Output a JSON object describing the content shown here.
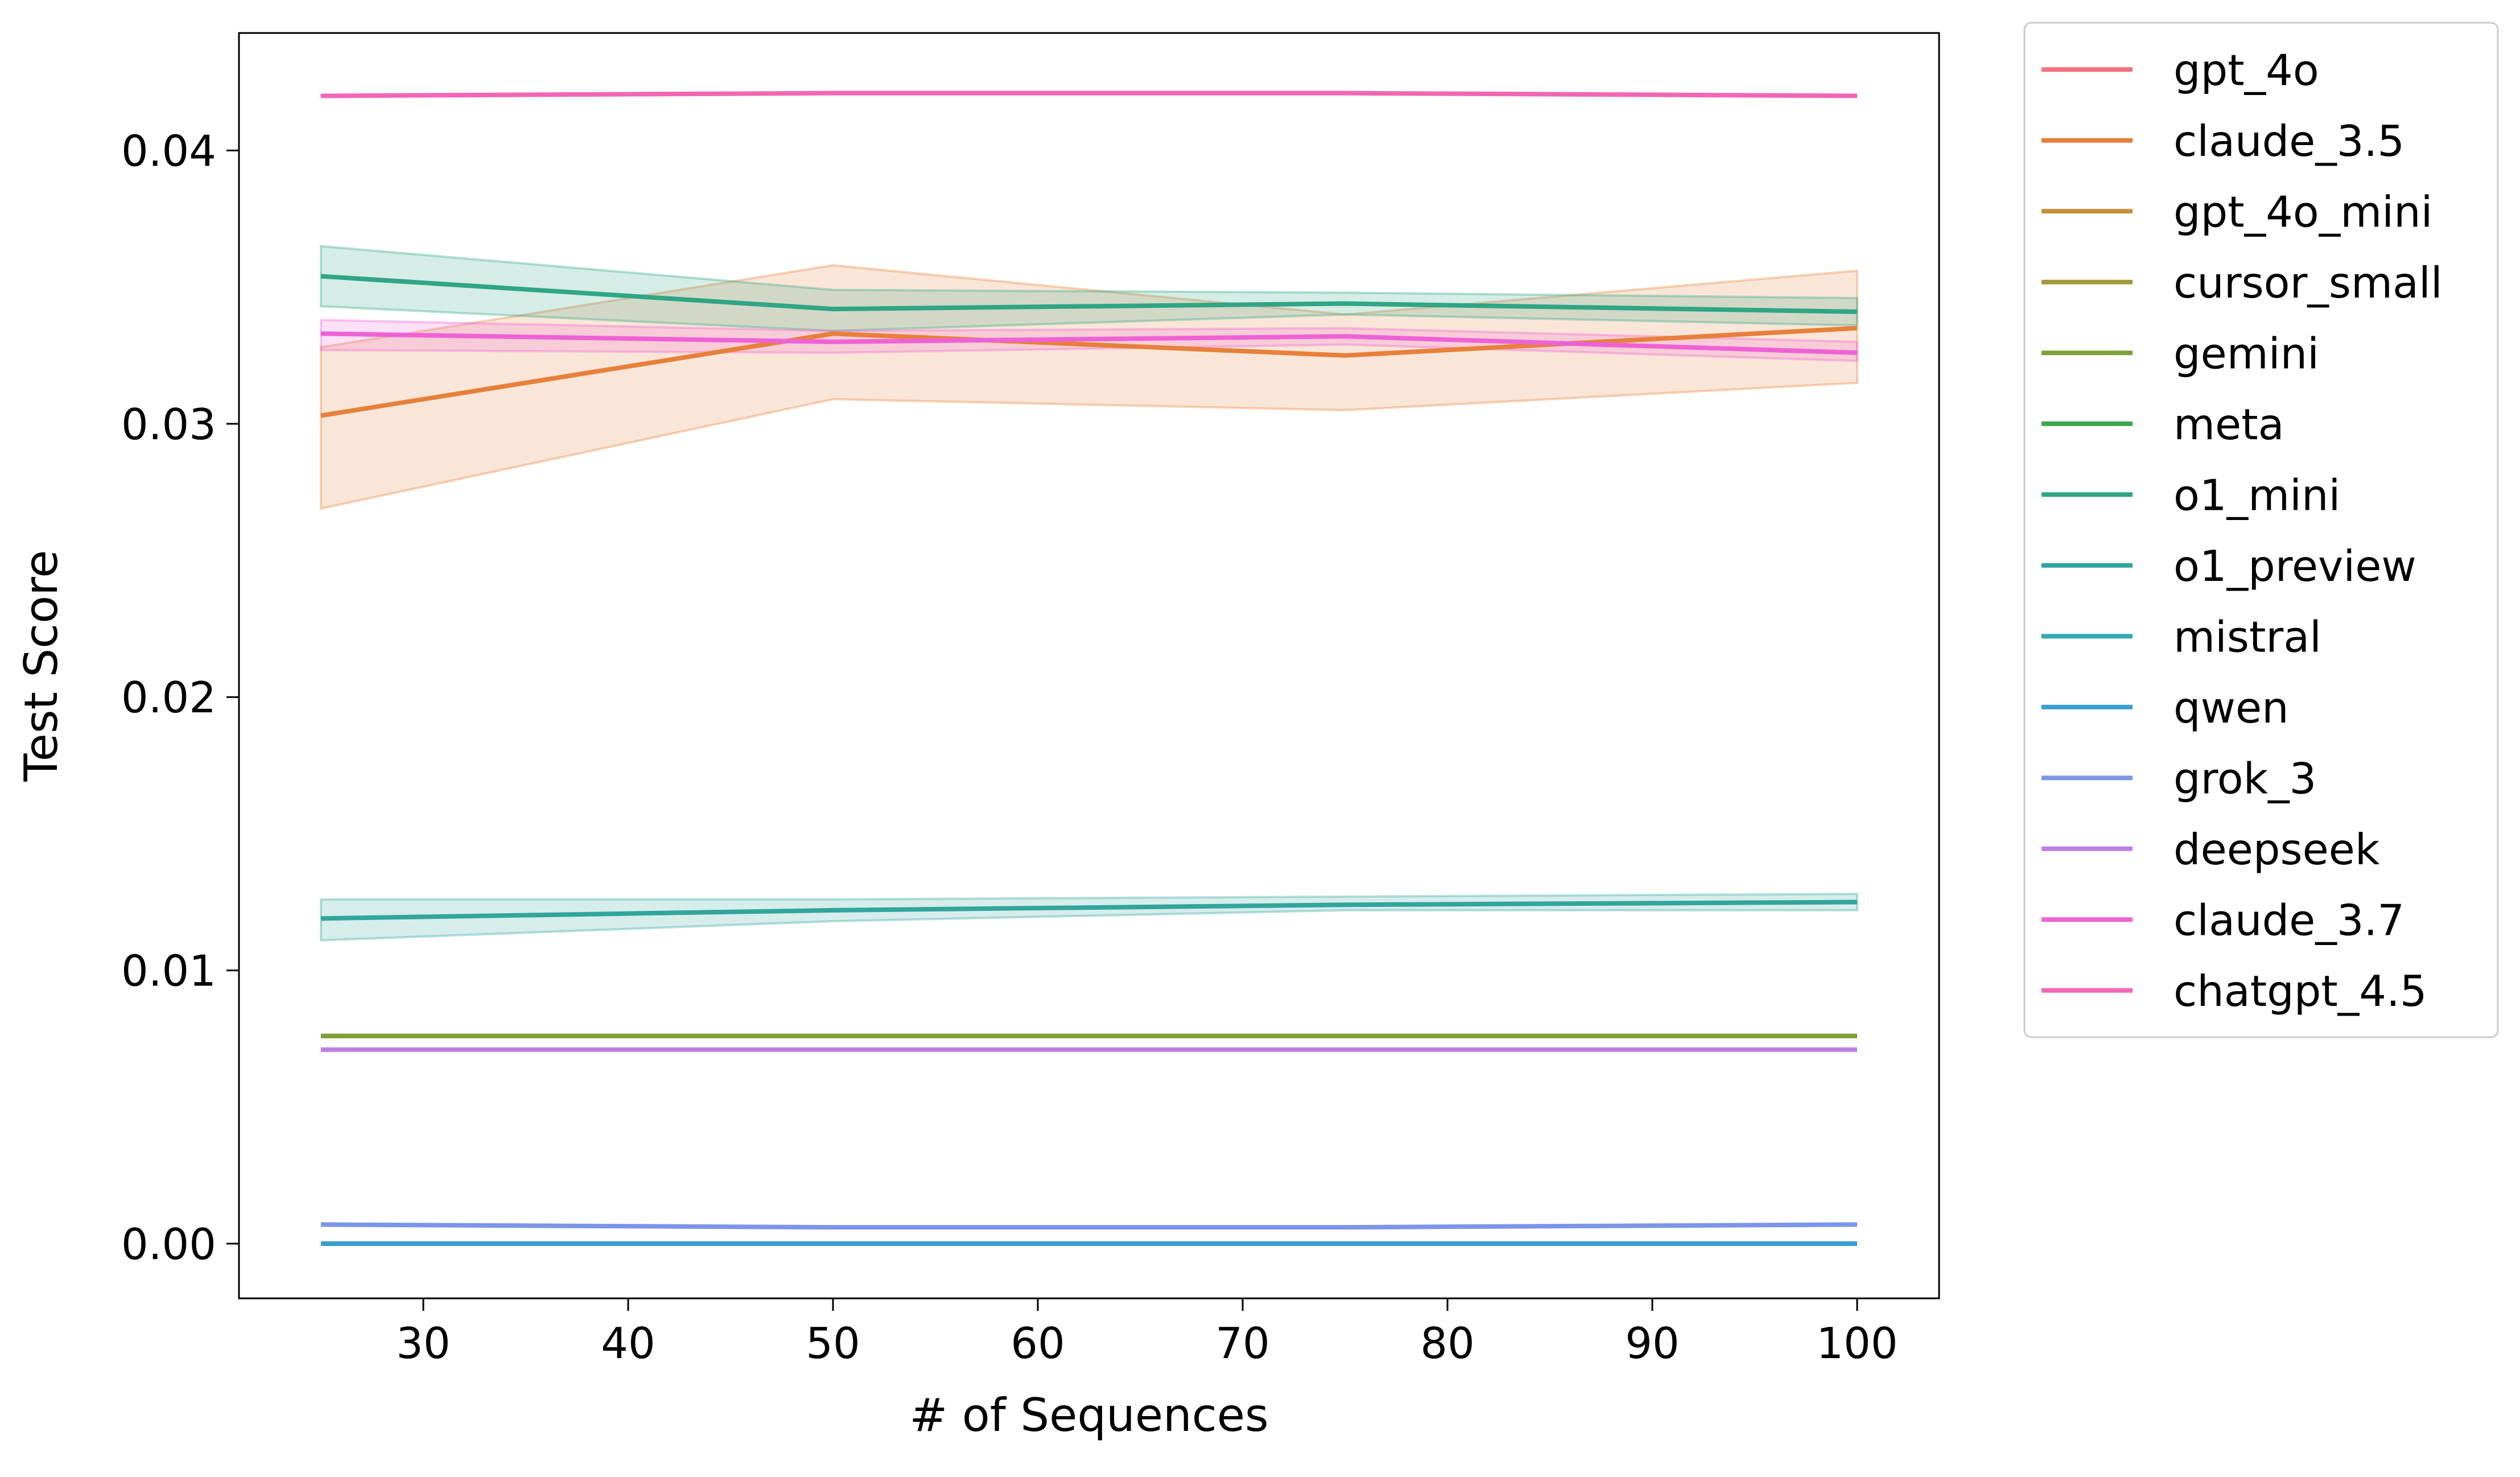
{
  "chart_data": {
    "type": "line",
    "title": "",
    "xlabel": "# of Sequences",
    "ylabel": "Test Score",
    "x": [
      25,
      50,
      75,
      100
    ],
    "xlim": [
      21,
      104
    ],
    "ylim": [
      -0.002,
      0.0443
    ],
    "xticks": [
      "30",
      "40",
      "50",
      "60",
      "70",
      "80",
      "90",
      "100"
    ],
    "yticks": [
      "0.00",
      "0.01",
      "0.02",
      "0.03",
      "0.04"
    ],
    "grid": false,
    "legend_placement": "outside-right-top",
    "series": [
      {
        "name": "gpt_4o",
        "color": "#f0717f",
        "values": [
          0.0,
          0.0,
          0.0,
          0.0
        ]
      },
      {
        "name": "claude_3.5",
        "color": "#e7803a",
        "values": [
          0.0303,
          0.0333,
          0.0325,
          0.0335
        ],
        "ci_low": [
          0.0269,
          0.0309,
          0.0305,
          0.0315
        ],
        "ci_high": [
          0.0328,
          0.0358,
          0.034,
          0.0356
        ]
      },
      {
        "name": "gpt_4o_mini",
        "color": "#c5903a",
        "values": [
          0.0076,
          0.0076,
          0.0076,
          0.0076
        ]
      },
      {
        "name": "cursor_small",
        "color": "#a3993a",
        "values": [
          0.0076,
          0.0076,
          0.0076,
          0.0076
        ]
      },
      {
        "name": "gemini",
        "color": "#7ea13a",
        "values": [
          0.0076,
          0.0076,
          0.0076,
          0.0076
        ]
      },
      {
        "name": "meta",
        "color": "#39a64c",
        "values": [
          0.0,
          0.0,
          0.0,
          0.0
        ]
      },
      {
        "name": "o1_mini",
        "color": "#2fa583",
        "values": [
          0.0354,
          0.0342,
          0.0344,
          0.0341
        ],
        "ci_low": [
          0.0343,
          0.0334,
          0.034,
          0.0336
        ],
        "ci_high": [
          0.0365,
          0.0349,
          0.0348,
          0.0346
        ]
      },
      {
        "name": "o1_preview",
        "color": "#31a59b",
        "values": [
          0.0119,
          0.0122,
          0.0124,
          0.0125
        ],
        "ci_low": [
          0.0111,
          0.0118,
          0.0122,
          0.0122
        ],
        "ci_high": [
          0.0126,
          0.0126,
          0.0127,
          0.0128
        ]
      },
      {
        "name": "mistral",
        "color": "#34a8b4",
        "values": [
          0.0,
          0.0,
          0.0,
          0.0
        ]
      },
      {
        "name": "qwen",
        "color": "#3a9ed4",
        "values": [
          0.0,
          0.0,
          0.0,
          0.0
        ]
      },
      {
        "name": "grok_3",
        "color": "#7b95e8",
        "values": [
          0.0007,
          0.0006,
          0.0006,
          0.0007
        ]
      },
      {
        "name": "deepseek",
        "color": "#bd7ee8",
        "values": [
          0.0071,
          0.0071,
          0.0071,
          0.0071
        ]
      },
      {
        "name": "claude_3.7",
        "color": "#ee62d6",
        "values": [
          0.0333,
          0.033,
          0.0332,
          0.0326
        ],
        "ci_low": [
          0.0327,
          0.0326,
          0.0329,
          0.0323
        ],
        "ci_high": [
          0.0338,
          0.0334,
          0.0335,
          0.033
        ]
      },
      {
        "name": "chatgpt_4.5",
        "color": "#f366b4",
        "values": [
          0.042,
          0.0421,
          0.0421,
          0.042
        ]
      }
    ]
  }
}
